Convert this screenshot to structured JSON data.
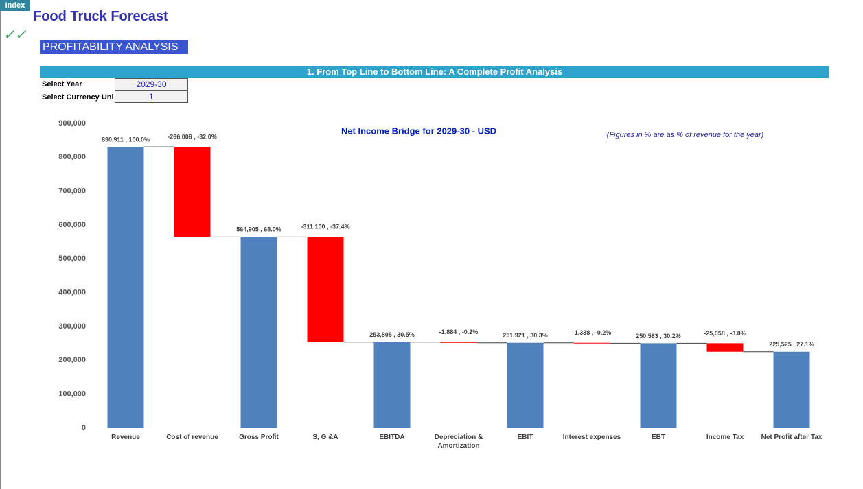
{
  "index_button": "Index",
  "checkmarks": "✓✓",
  "header": {
    "title": "Food Truck Forecast",
    "section": "PROFITABILITY ANALYSIS",
    "banner": "1. From Top Line to Bottom Line: A Complete Profit Analysis"
  },
  "inputs": [
    {
      "label": "Select Year",
      "value": "2029-30"
    },
    {
      "label": "Select Currency Uni",
      "value": 1
    }
  ],
  "chart_data": {
    "type": "waterfall",
    "title": "Net Income Bridge for 2029-30 - USD",
    "annotation": "(Figures in % are as % of revenue for the year)",
    "categories": [
      "Revenue",
      "Cost of revenue",
      "Gross Profit",
      "S, G &A",
      "EBITDA",
      "Depreciation & Amortization",
      "EBIT",
      "Interest expenses",
      "EBT",
      "Income Tax",
      "Net Profit after Tax"
    ],
    "values": [
      830911,
      -266006,
      564905,
      -311100,
      253805,
      -1884,
      251921,
      -1338,
      250583,
      -25058,
      225525
    ],
    "value_labels": [
      "830,911 , 100.0%",
      "-266,006 , -32.0%",
      "564,905 , 68.0%",
      "-311,100 , -37.4%",
      "253,805 , 30.5%",
      "-1,884 , -0.2%",
      "251,921 , 30.3%",
      "-1,338 , -0.2%",
      "250,583 , 30.2%",
      "-25,058 , -3.0%",
      "225,525 , 27.1%"
    ],
    "total_color": "#4f81bd",
    "decrease_color": "#ff0000",
    "ylim": [
      0,
      900000
    ],
    "yticks": [
      0,
      {
        "value": 100000,
        "label": "100,000"
      },
      {
        "value": 200000,
        "label": "200,000"
      },
      {
        "value": 300000,
        "label": "300,000"
      },
      {
        "value": 400000,
        "label": "400,000"
      },
      {
        "value": 500000,
        "label": "500,000"
      },
      {
        "value": 600000,
        "label": "600,000"
      },
      {
        "value": 700000,
        "label": "700,000"
      },
      {
        "value": 800000,
        "label": "800,000"
      },
      {
        "value": 900000,
        "label": "900,000"
      }
    ],
    "grid": false
  }
}
